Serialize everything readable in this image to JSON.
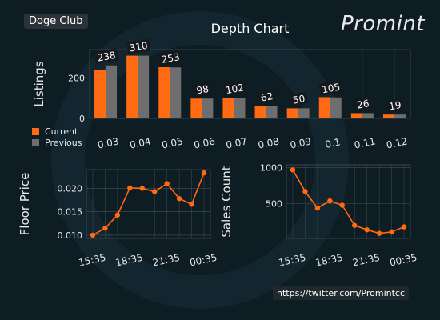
{
  "header": {
    "badge": "Doge Club",
    "title": "Depth Chart",
    "brand": "Promint",
    "footer_link": "https://twitter.com/Promintcc"
  },
  "colors": {
    "current": "#ff6a13",
    "previous": "#6e6e6e",
    "line": "#ff6a13",
    "background": "#0e1c23",
    "grid": "#3a474e"
  },
  "chart_data": [
    {
      "type": "bar",
      "title": "Depth Chart",
      "ylabel": "Listings",
      "xlabel": "",
      "categories": [
        "0.03",
        "0.04",
        "0.05",
        "0.06",
        "0.07",
        "0.08",
        "0.09",
        "0.1",
        "0.11",
        "0.12"
      ],
      "series": [
        {
          "name": "Current",
          "values": [
            238,
            310,
            253,
            98,
            102,
            62,
            50,
            105,
            26,
            19
          ]
        },
        {
          "name": "Previous",
          "values": [
            262,
            310,
            252,
            98,
            102,
            62,
            50,
            104,
            26,
            19
          ]
        }
      ],
      "data_labels": [
        "238",
        "310",
        "253",
        "98",
        "102",
        "62",
        "50",
        "105",
        "26",
        "19"
      ],
      "yticks": [
        0,
        200
      ],
      "ylim": [
        0,
        340
      ],
      "grid": true,
      "legend": "bottom-left"
    },
    {
      "type": "line",
      "ylabel": "Floor Price",
      "xlabel": "",
      "x": [
        "15:35",
        "16:35",
        "17:35",
        "18:35",
        "19:35",
        "20:35",
        "21:35",
        "22:35",
        "23:35",
        "00:35"
      ],
      "xticks": [
        "15:35",
        "18:35",
        "21:35",
        "00:35"
      ],
      "series": [
        {
          "values": [
            0.01,
            0.0115,
            0.0143,
            0.0201,
            0.02,
            0.0193,
            0.021,
            0.0178,
            0.0166,
            0.0233
          ]
        }
      ],
      "yticks": [
        "0.010",
        "0.015",
        "0.020"
      ],
      "ylim": [
        0.0093,
        0.024
      ],
      "grid": true
    },
    {
      "type": "line",
      "ylabel": "Sales Count",
      "xlabel": "",
      "x": [
        "15:35",
        "16:35",
        "17:35",
        "18:35",
        "19:35",
        "20:35",
        "21:35",
        "22:35",
        "23:35",
        "00:35"
      ],
      "xticks": [
        "15:35",
        "18:35",
        "21:35",
        "00:35"
      ],
      "series": [
        {
          "values": [
            970,
            670,
            440,
            540,
            480,
            200,
            140,
            90,
            110,
            180
          ]
        }
      ],
      "yticks": [
        "500",
        "1000"
      ],
      "ylim": [
        20,
        1040
      ],
      "grid": true
    }
  ]
}
